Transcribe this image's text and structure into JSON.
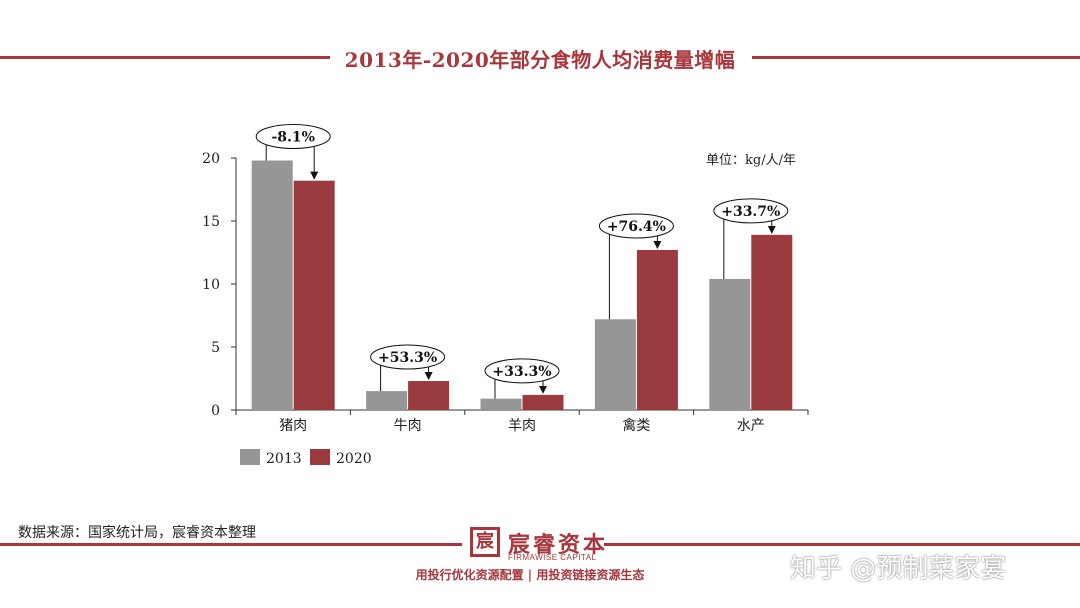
{
  "title": "2013年-2020年部分食物人均消费量增幅",
  "unit_label": "单位：kg/人/年",
  "source": "数据来源：国家统计局，宸睿资本整理",
  "logo": {
    "icon": "seal-icon",
    "name_cn": "宸睿资本",
    "name_en": "FIRMAWISE CAPITAL"
  },
  "slogan": "用投行优化资源配置 | 用投资链接资源生态",
  "watermark": "知乎 @预制菜家宴",
  "colors": {
    "accent": "#a8373c",
    "series_2013": "#969696",
    "series_2020": "#9b3a3f"
  },
  "chart_data": {
    "type": "bar",
    "categories": [
      "猪肉",
      "牛肉",
      "羊肉",
      "禽类",
      "水产"
    ],
    "series": [
      {
        "name": "2013",
        "values": [
          19.8,
          1.5,
          0.9,
          7.2,
          10.4
        ]
      },
      {
        "name": "2020",
        "values": [
          18.2,
          2.3,
          1.2,
          12.7,
          13.9
        ]
      }
    ],
    "annotations": [
      "-8.1%",
      "+53.3%",
      "+33.3%",
      "+76.4%",
      "+33.7%"
    ],
    "ylim": [
      0,
      20
    ],
    "yticks": [
      0,
      5,
      10,
      15,
      20
    ],
    "legend": "bottom-left"
  }
}
